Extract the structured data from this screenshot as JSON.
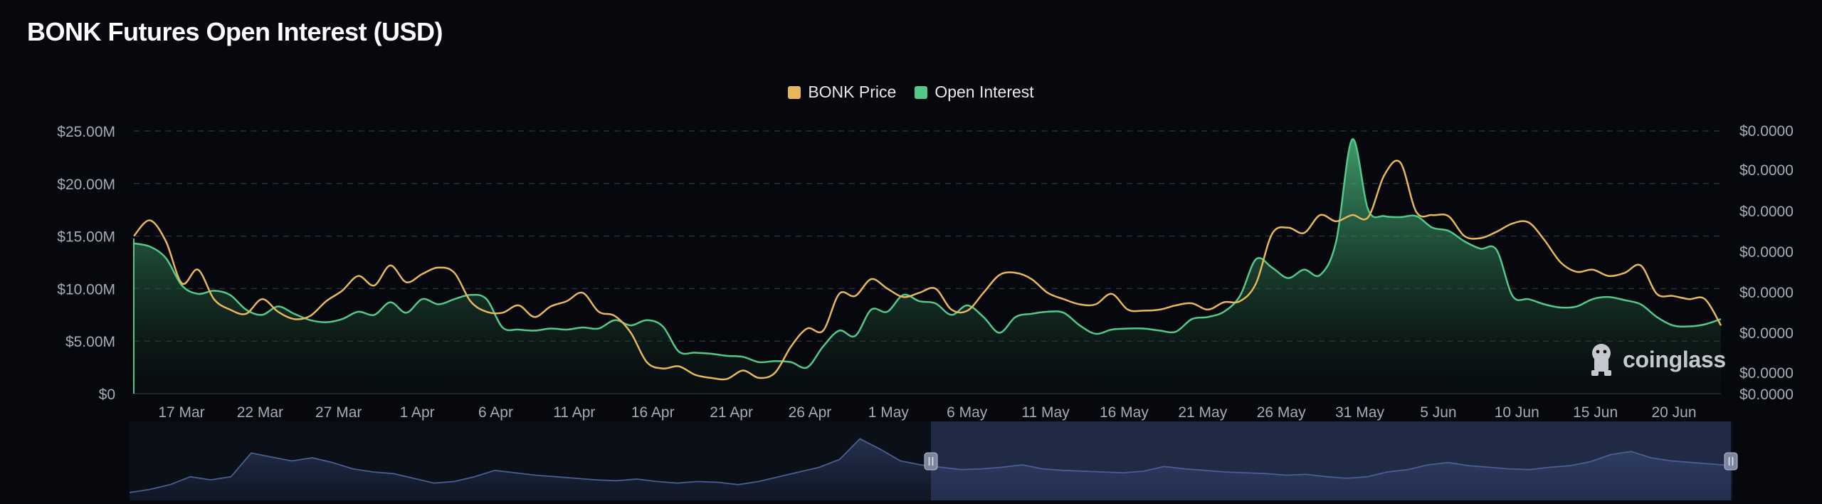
{
  "title": "BONK Futures Open Interest (USD)",
  "legend": [
    {
      "label": "BONK Price",
      "color": "#e6b75b"
    },
    {
      "label": "Open Interest",
      "color": "#52c98a"
    }
  ],
  "watermark": "coinglass",
  "colors": {
    "background": "#06080d",
    "price": "#e6b75b",
    "open_interest": "#52c98a",
    "navigator": "#4a5f8f"
  },
  "chart_data": {
    "type": "area",
    "title": "BONK Futures Open Interest (USD)",
    "grid": true,
    "legend_position": "top-center",
    "x_ticks": [
      "17 Mar",
      "22 Mar",
      "27 Mar",
      "1 Apr",
      "6 Apr",
      "11 Apr",
      "16 Apr",
      "21 Apr",
      "26 Apr",
      "1 May",
      "6 May",
      "11 May",
      "16 May",
      "21 May",
      "26 May",
      "31 May",
      "5 Jun",
      "10 Jun",
      "15 Jun",
      "20 Jun"
    ],
    "y_left_ticks": [
      "$0",
      "$5.00M",
      "$10.00M",
      "$15.00M",
      "$20.00M",
      "$25.00M"
    ],
    "y_left_range": [
      0,
      25
    ],
    "y_left_unit": "M USD",
    "y_right_ticks": [
      "$0.0000",
      "$0.0000",
      "$0.0000",
      "$0.0000",
      "$0.0000",
      "$0.0000",
      "$0.0000",
      "$0.0000"
    ],
    "x_start": "14 Mar",
    "series": [
      {
        "name": "Open Interest",
        "axis": "left",
        "color": "#52c98a",
        "values": [
          14.3,
          14.0,
          12.9,
          10.3,
          9.5,
          9.8,
          9.4,
          8.0,
          7.5,
          8.3,
          7.6,
          7.0,
          6.8,
          7.1,
          7.8,
          7.5,
          8.7,
          7.7,
          9.0,
          8.5,
          9.0,
          9.4,
          9.0,
          6.3,
          6.1,
          6.0,
          6.2,
          6.1,
          6.3,
          6.2,
          7.0,
          6.5,
          7.0,
          6.4,
          4.0,
          3.9,
          3.8,
          3.6,
          3.5,
          3.0,
          3.1,
          3.0,
          2.5,
          4.5,
          6.0,
          5.5,
          8.0,
          7.8,
          9.4,
          8.8,
          8.6,
          7.5,
          8.4,
          7.3,
          5.8,
          7.3,
          7.6,
          7.8,
          7.7,
          6.5,
          5.7,
          6.1,
          6.2,
          6.2,
          6.0,
          5.9,
          7.1,
          7.3,
          7.8,
          9.3,
          12.8,
          12.0,
          11.0,
          11.8,
          11.3,
          14.5,
          24.2,
          17.5,
          16.9,
          16.8,
          16.9,
          15.8,
          15.5,
          14.5,
          13.8,
          13.7,
          9.3,
          9.0,
          8.5,
          8.2,
          8.3,
          9.0,
          9.2,
          8.9,
          8.5,
          7.3,
          6.5,
          6.4,
          6.6,
          7.1
        ]
      },
      {
        "name": "BONK Price",
        "axis": "right",
        "color": "#e6b75b",
        "values": [
          15.0,
          16.5,
          14.5,
          10.5,
          11.8,
          9.0,
          8.0,
          7.6,
          9.0,
          7.8,
          7.1,
          7.4,
          8.8,
          9.8,
          11.2,
          10.3,
          12.2,
          10.6,
          11.4,
          12.0,
          11.5,
          8.8,
          7.8,
          7.7,
          8.4,
          7.3,
          8.3,
          8.8,
          9.6,
          7.8,
          7.4,
          5.8,
          3.0,
          2.4,
          2.6,
          1.8,
          1.5,
          1.4,
          2.2,
          1.5,
          2.0,
          4.5,
          6.2,
          6.0,
          9.5,
          9.3,
          10.9,
          10.0,
          9.2,
          9.6,
          10.0,
          8.0,
          7.9,
          9.6,
          11.3,
          11.5,
          10.9,
          9.6,
          9.0,
          8.5,
          8.5,
          9.5,
          8.0,
          7.9,
          8.0,
          8.4,
          8.6,
          8.0,
          8.7,
          8.8,
          10.5,
          15.2,
          15.8,
          15.3,
          17.0,
          16.4,
          17.0,
          16.8,
          20.8,
          22.0,
          17.3,
          17.0,
          16.9,
          15.0,
          14.8,
          15.4,
          16.2,
          16.3,
          14.6,
          12.5,
          11.6,
          11.8,
          11.2,
          11.5,
          12.2,
          9.5,
          9.3,
          9.0,
          9.0,
          6.5
        ]
      }
    ],
    "navigator": {
      "values": [
        1.0,
        1.4,
        2.0,
        3.0,
        2.6,
        3.0,
        6.0,
        5.5,
        5.0,
        5.4,
        4.8,
        4.0,
        3.6,
        3.4,
        2.8,
        2.2,
        2.4,
        3.0,
        3.8,
        3.5,
        3.2,
        3.0,
        2.8,
        2.6,
        2.5,
        2.7,
        2.4,
        2.2,
        2.4,
        2.3,
        2.0,
        2.4,
        3.0,
        3.6,
        4.2,
        5.2,
        7.8,
        6.5,
        5.0,
        4.5,
        4.2,
        3.9,
        4.0,
        4.2,
        4.5,
        4.0,
        3.8,
        3.7,
        3.6,
        3.5,
        3.7,
        4.3,
        4.0,
        3.8,
        3.6,
        3.5,
        3.4,
        3.2,
        3.3,
        3.0,
        2.8,
        3.0,
        3.6,
        3.9,
        4.5,
        4.8,
        4.4,
        4.2,
        4.0,
        3.9,
        4.2,
        4.4,
        4.9,
        5.8,
        6.2,
        5.4,
        5.0,
        4.8,
        4.6,
        4.4
      ]
    }
  }
}
